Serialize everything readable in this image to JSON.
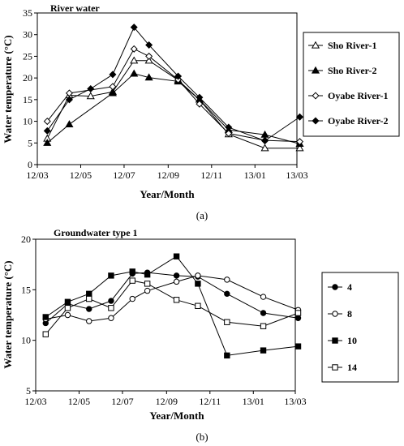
{
  "chart_data": [
    {
      "type": "line",
      "title": "River water",
      "caption": "(a)",
      "xlabel": "Year/Month",
      "ylabel": "Water temperature (°C)",
      "ylim": [
        0,
        35
      ],
      "yticks": [
        0,
        5,
        10,
        15,
        20,
        25,
        30,
        35
      ],
      "xticks": [
        "12/03",
        "12/05",
        "12/07",
        "12/09",
        "12/11",
        "13/01",
        "13/03"
      ],
      "grid": false,
      "legend_position": "right",
      "series": [
        {
          "name": "Sho River-1",
          "marker": "triangle-open",
          "x": [
            "2012-03-15",
            "2012-04-15",
            "2012-05-15",
            "2012-06-15",
            "2012-07-15",
            "2012-08-05",
            "2012-09-15",
            "2012-10-15",
            "2012-11-25",
            "2013-01-15",
            "2013-03-05"
          ],
          "values": [
            6,
            16,
            15.8,
            16.8,
            24,
            24,
            19.5,
            15,
            7,
            3.8,
            3.8
          ]
        },
        {
          "name": "Sho River-2",
          "marker": "triangle-filled",
          "x": [
            "2012-03-15",
            "2012-04-15",
            "2012-06-15",
            "2012-07-15",
            "2012-08-05",
            "2012-09-15",
            "2012-10-15",
            "2012-11-25",
            "2013-01-15",
            "2013-03-05"
          ],
          "values": [
            5,
            9.3,
            16.5,
            21,
            20.1,
            19.2,
            15,
            8,
            6.9,
            4.8
          ]
        },
        {
          "name": "Oyabe River-1",
          "marker": "diamond-open",
          "x": [
            "2012-03-15",
            "2012-04-15",
            "2012-06-15",
            "2012-07-15",
            "2012-08-05",
            "2012-09-15",
            "2012-10-15",
            "2012-11-25",
            "2013-01-15",
            "2013-03-05"
          ],
          "values": [
            10,
            16.5,
            18,
            26.7,
            25,
            19.6,
            14,
            7.2,
            5.6,
            5.3
          ]
        },
        {
          "name": "Oyabe River-2",
          "marker": "diamond-filled",
          "x": [
            "2012-03-15",
            "2012-04-15",
            "2012-05-15",
            "2012-06-15",
            "2012-07-15",
            "2012-08-05",
            "2012-09-15",
            "2012-10-15",
            "2012-11-25",
            "2013-01-15",
            "2013-03-05"
          ],
          "values": [
            7.8,
            15,
            17.5,
            20.8,
            31.7,
            27.6,
            20.4,
            15.5,
            8.6,
            5.5,
            11
          ]
        }
      ]
    },
    {
      "type": "line",
      "title": "Groundwater type 1",
      "caption": "(b)",
      "xlabel": "Year/Month",
      "ylabel": "Water temperature (°C)",
      "ylim": [
        5,
        20
      ],
      "yticks": [
        5,
        10,
        15,
        20
      ],
      "xticks": [
        "12/03",
        "12/05",
        "12/07",
        "12/09",
        "12/11",
        "13/01",
        "13/03"
      ],
      "grid": false,
      "legend_position": "right",
      "series": [
        {
          "name": "4",
          "marker": "circle-filled",
          "x": [
            "2012-03-15",
            "2012-04-15",
            "2012-05-15",
            "2012-06-15",
            "2012-07-15",
            "2012-08-05",
            "2012-09-15",
            "2012-10-15",
            "2012-11-25",
            "2013-01-15",
            "2013-03-05"
          ],
          "values": [
            11.7,
            13.6,
            13.1,
            13.9,
            16.6,
            16.7,
            16.4,
            16.3,
            14.6,
            12.7,
            12.2
          ]
        },
        {
          "name": "8",
          "marker": "circle-open",
          "x": [
            "2012-03-15",
            "2012-04-15",
            "2012-05-15",
            "2012-06-15",
            "2012-07-15",
            "2012-08-05",
            "2012-09-15",
            "2012-10-15",
            "2012-11-25",
            "2013-01-15",
            "2013-03-05"
          ],
          "values": [
            12.1,
            12.5,
            11.9,
            12.2,
            14.1,
            14.9,
            15.8,
            16.4,
            16,
            14.3,
            13
          ]
        },
        {
          "name": "10",
          "marker": "square-filled",
          "x": [
            "2012-03-15",
            "2012-04-15",
            "2012-05-15",
            "2012-06-15",
            "2012-07-15",
            "2012-08-05",
            "2012-09-15",
            "2012-10-15",
            "2012-11-25",
            "2013-01-15",
            "2013-03-05"
          ],
          "values": [
            12.3,
            13.8,
            14.6,
            16.4,
            16.8,
            16.5,
            18.3,
            15.6,
            8.5,
            9,
            9.4
          ]
        },
        {
          "name": "14",
          "marker": "square-open",
          "x": [
            "2012-03-15",
            "2012-04-15",
            "2012-05-15",
            "2012-06-15",
            "2012-07-15",
            "2012-08-05",
            "2012-09-15",
            "2012-10-15",
            "2012-11-25",
            "2013-01-15",
            "2013-03-05"
          ],
          "values": [
            10.6,
            13.2,
            14.1,
            13.2,
            15.9,
            15.6,
            14,
            13.4,
            11.8,
            11.4,
            12.7
          ]
        }
      ]
    }
  ]
}
